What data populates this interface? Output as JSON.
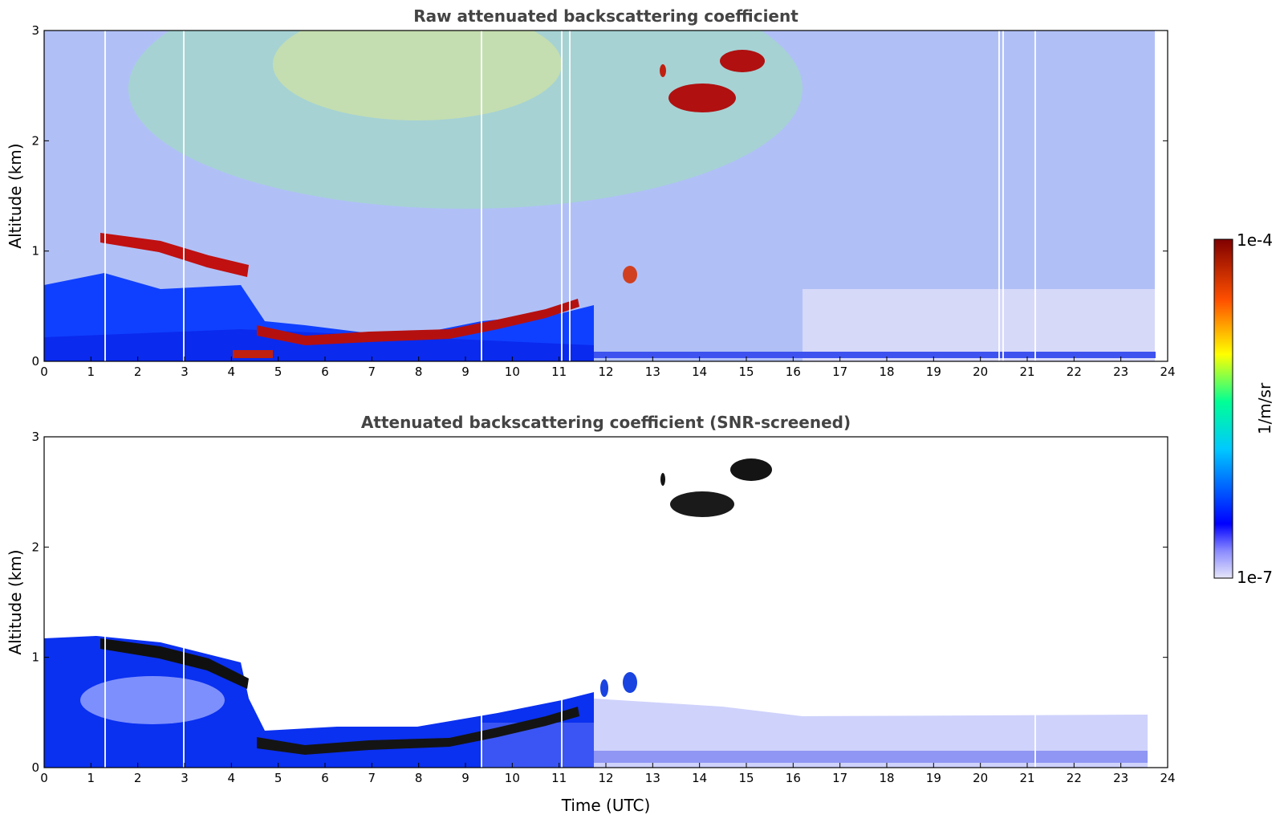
{
  "colors": {
    "jet": [
      "#e6e6fa",
      "#0000ff",
      "#00c8ff",
      "#00ff96",
      "#ffff00",
      "#ff5000",
      "#800000"
    ],
    "background": "#ffffff",
    "axis": "#000000",
    "title": "#444444"
  },
  "chart_data": [
    {
      "type": "heatmap",
      "title": "Raw attenuated backscattering coefficient",
      "xlabel": "",
      "ylabel": "Altitude (km)",
      "xlim": [
        0,
        24
      ],
      "ylim": [
        0,
        3
      ],
      "xticks": [
        "0",
        "1",
        "2",
        "3",
        "4",
        "5",
        "6",
        "7",
        "8",
        "9",
        "10",
        "11",
        "12",
        "13",
        "14",
        "15",
        "16",
        "17",
        "18",
        "19",
        "20",
        "21",
        "22",
        "23",
        "24"
      ],
      "yticks": [
        "0",
        "1",
        "2",
        "3"
      ],
      "data_end_hour": 23.75,
      "layers": {
        "boundary_layer_top_km": [
          [
            1.2,
            1.18
          ],
          [
            2.0,
            1.08
          ],
          [
            3.0,
            0.95
          ],
          [
            4.3,
            0.8
          ],
          [
            5.0,
            0.22
          ],
          [
            6.0,
            0.2
          ],
          [
            7.0,
            0.25
          ],
          [
            8.0,
            0.25
          ],
          [
            9.0,
            0.3
          ],
          [
            10.0,
            0.4
          ],
          [
            11.0,
            0.52
          ],
          [
            11.5,
            0.58
          ]
        ],
        "cloud_patches": [
          {
            "hour": 15.1,
            "alt_km": 2.7,
            "label": "cirrus"
          },
          {
            "hour": 14.1,
            "alt_km": 2.38,
            "label": "cirrus"
          },
          {
            "hour": 13.2,
            "alt_km": 2.62,
            "label": "cirrus"
          },
          {
            "hour": 12.5,
            "alt_km": 0.78,
            "label": "cloud"
          }
        ]
      }
    },
    {
      "type": "heatmap",
      "title": "Attenuated backscattering coefficient (SNR-screened)",
      "xlabel": "Time (UTC)",
      "ylabel": "Altitude (km)",
      "xlim": [
        0,
        24
      ],
      "ylim": [
        0,
        3
      ],
      "xticks": [
        "0",
        "1",
        "2",
        "3",
        "4",
        "5",
        "6",
        "7",
        "8",
        "9",
        "10",
        "11",
        "12",
        "13",
        "14",
        "15",
        "16",
        "17",
        "18",
        "19",
        "20",
        "21",
        "22",
        "23",
        "24"
      ],
      "yticks": [
        "0",
        "1",
        "2",
        "3"
      ],
      "data_end_hour": 23.75
    }
  ],
  "colorbar": {
    "label": "1/m/sr",
    "max_label": "1e-4",
    "min_label": "1e-7",
    "min_value": 1e-07,
    "max_value": 0.0001,
    "scale": "log"
  }
}
